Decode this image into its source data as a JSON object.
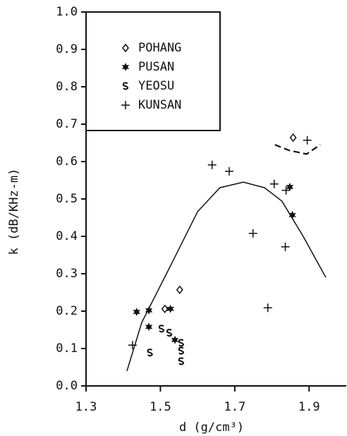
{
  "chart_data": {
    "type": "scatter",
    "x_label": "d (g/cm³)",
    "y_label": "k (dB/KHz-m)",
    "xlim": [
      1.3,
      2.0
    ],
    "xticks": [
      1.3,
      1.5,
      1.7,
      1.9
    ],
    "ylim": [
      0,
      1
    ],
    "yticks": [
      {
        "value": 0,
        "label": "0.0"
      },
      0.1,
      0.2,
      0.3,
      0.4,
      0.5,
      0.6,
      0.7,
      0.8,
      0.9,
      {
        "value": 1,
        "label": "1.0"
      }
    ],
    "legend": "upper left",
    "series": [
      {
        "name": "POHANG",
        "marker": "diamond",
        "color": "#111",
        "x": [
          1.857,
          1.512,
          1.552
        ],
        "values": [
          0.664,
          0.206,
          0.257
        ]
      },
      {
        "name": "PUSAN",
        "marker": "star",
        "color": "#111",
        "x": [
          1.436,
          1.469,
          1.527,
          1.469,
          1.539,
          1.848,
          1.855
        ],
        "values": [
          0.198,
          0.202,
          0.206,
          0.158,
          0.123,
          0.532,
          0.457
        ]
      },
      {
        "name": "YEOSU",
        "marker": "s",
        "color": "#111",
        "x": [
          1.503,
          1.524,
          1.556,
          1.556,
          1.556,
          1.472
        ],
        "values": [
          0.153,
          0.142,
          0.115,
          0.094,
          0.066,
          0.089
        ]
      },
      {
        "name": "KUNSAN",
        "marker": "plus",
        "color": "#111",
        "x": [
          1.425,
          1.639,
          1.685,
          1.806,
          1.838,
          1.749,
          1.836,
          1.789,
          1.895
        ],
        "values": [
          0.109,
          0.591,
          0.574,
          0.54,
          0.523,
          0.408,
          0.372,
          0.209,
          0.657
        ]
      }
    ],
    "curves": [
      {
        "style": "solid",
        "x": [
          1.41,
          1.45,
          1.524,
          1.6,
          1.66,
          1.723,
          1.78,
          1.827,
          1.884,
          1.945
        ],
        "values": [
          0.04,
          0.17,
          0.315,
          0.466,
          0.53,
          0.545,
          0.53,
          0.494,
          0.4,
          0.29
        ]
      },
      {
        "style": "dashed",
        "x": [
          1.808,
          1.846,
          1.893,
          1.93
        ],
        "values": [
          0.645,
          0.63,
          0.62,
          0.645
        ]
      }
    ]
  }
}
